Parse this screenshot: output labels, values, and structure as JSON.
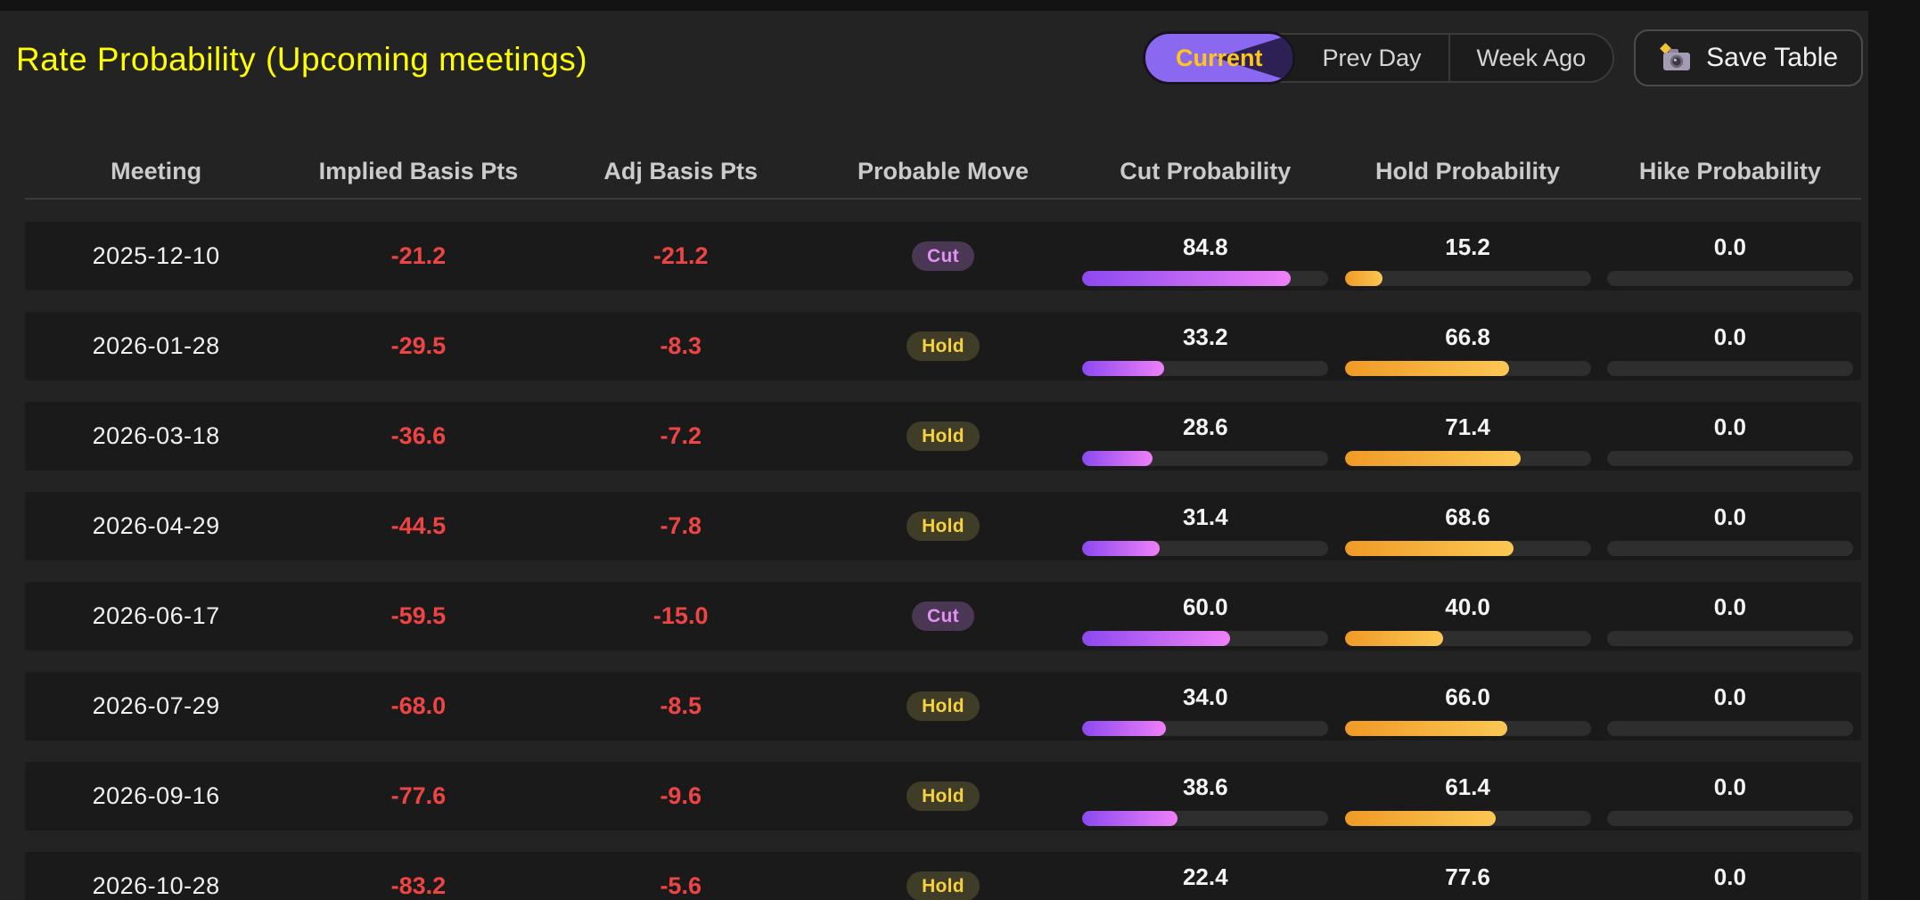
{
  "title": "Rate Probability (Upcoming meetings)",
  "toolbar": {
    "tabs": [
      {
        "label": "Current",
        "active": true
      },
      {
        "label": "Prev Day",
        "active": false
      },
      {
        "label": "Week Ago",
        "active": false
      }
    ],
    "save_label": "Save Table",
    "save_icon": "camera-icon"
  },
  "colors": {
    "title": "#ffff00",
    "negative_value": "#ef4444",
    "active_tab_bg": "#8b68f0",
    "active_tab_text": "#ffc61a",
    "cut_bar_gradient": [
      "#8c49f0",
      "#ef80f8"
    ],
    "hold_bar_gradient": [
      "#f09a26",
      "#fcc753"
    ],
    "cut_badge_bg": "#4a3754",
    "cut_badge_text": "#e490f6",
    "hold_badge_bg": "#3f3c27",
    "hold_badge_text": "#f7d13f",
    "row_bg": "#1a1a1a",
    "page_bg": "#232323",
    "bar_track": "#2e2e2e"
  },
  "table": {
    "columns": [
      "Meeting",
      "Implied Basis Pts",
      "Adj Basis Pts",
      "Probable Move",
      "Cut Probability",
      "Hold Probability",
      "Hike Probability"
    ],
    "rows": [
      {
        "meeting": "2025-12-10",
        "implied_bps": "-21.2",
        "adj_bps": "-21.2",
        "move": "Cut",
        "cut": "84.8",
        "hold": "15.2",
        "hike": "0.0"
      },
      {
        "meeting": "2026-01-28",
        "implied_bps": "-29.5",
        "adj_bps": "-8.3",
        "move": "Hold",
        "cut": "33.2",
        "hold": "66.8",
        "hike": "0.0"
      },
      {
        "meeting": "2026-03-18",
        "implied_bps": "-36.6",
        "adj_bps": "-7.2",
        "move": "Hold",
        "cut": "28.6",
        "hold": "71.4",
        "hike": "0.0"
      },
      {
        "meeting": "2026-04-29",
        "implied_bps": "-44.5",
        "adj_bps": "-7.8",
        "move": "Hold",
        "cut": "31.4",
        "hold": "68.6",
        "hike": "0.0"
      },
      {
        "meeting": "2026-06-17",
        "implied_bps": "-59.5",
        "adj_bps": "-15.0",
        "move": "Cut",
        "cut": "60.0",
        "hold": "40.0",
        "hike": "0.0"
      },
      {
        "meeting": "2026-07-29",
        "implied_bps": "-68.0",
        "adj_bps": "-8.5",
        "move": "Hold",
        "cut": "34.0",
        "hold": "66.0",
        "hike": "0.0"
      },
      {
        "meeting": "2026-09-16",
        "implied_bps": "-77.6",
        "adj_bps": "-9.6",
        "move": "Hold",
        "cut": "38.6",
        "hold": "61.4",
        "hike": "0.0"
      },
      {
        "meeting": "2026-10-28",
        "implied_bps": "-83.2",
        "adj_bps": "-5.6",
        "move": "Hold",
        "cut": "22.4",
        "hold": "77.6",
        "hike": "0.0"
      }
    ]
  }
}
